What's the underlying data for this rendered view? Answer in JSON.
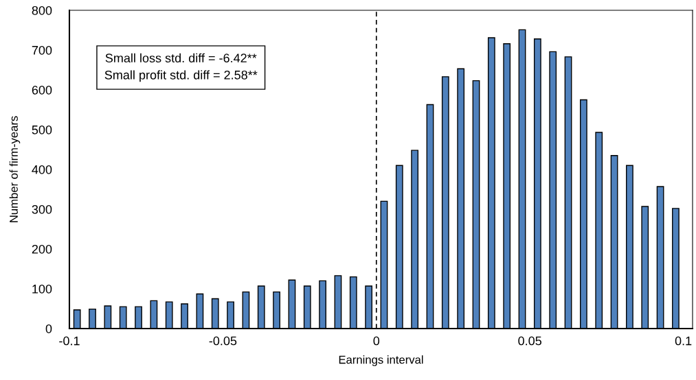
{
  "chart_data": {
    "type": "histogram",
    "xlabel": "Earnings interval",
    "ylabel": "Number of firm-years",
    "bins": [
      -0.1,
      -0.095,
      -0.09,
      -0.085,
      -0.08,
      -0.075,
      -0.07,
      -0.065,
      -0.06,
      -0.055,
      -0.05,
      -0.045,
      -0.04,
      -0.035,
      -0.03,
      -0.025,
      -0.02,
      -0.015,
      -0.01,
      -0.005,
      0,
      0.005,
      0.01,
      0.015,
      0.02,
      0.025,
      0.03,
      0.035,
      0.04,
      0.045,
      0.05,
      0.055,
      0.06,
      0.065,
      0.07,
      0.075,
      0.08,
      0.085,
      0.09,
      0.095,
      0.1
    ],
    "values": [
      47,
      49,
      57,
      55,
      55,
      70,
      67,
      62,
      87,
      75,
      67,
      92,
      107,
      92,
      122,
      107,
      120,
      133,
      130,
      107,
      320,
      410,
      448,
      563,
      633,
      653,
      623,
      731,
      716,
      751,
      728,
      696,
      683,
      575,
      493,
      435,
      410,
      307,
      357,
      302
    ],
    "color": "#4f81bd",
    "xlim": [
      -0.1,
      0.103
    ],
    "xticks": [
      -0.1,
      -0.05,
      0,
      0.05,
      0.1
    ],
    "ylim": [
      0,
      800
    ],
    "yticks": [
      0,
      100,
      200,
      300,
      400,
      500,
      600,
      700,
      800
    ],
    "grid": false,
    "ref_lines": [
      {
        "axis": "x",
        "value": 0,
        "color": "#000000",
        "line_style": "dashed"
      }
    ],
    "annotations": [
      "Small loss std. diff = -6.42**\nSmall profit std. diff = 2.58**"
    ]
  }
}
